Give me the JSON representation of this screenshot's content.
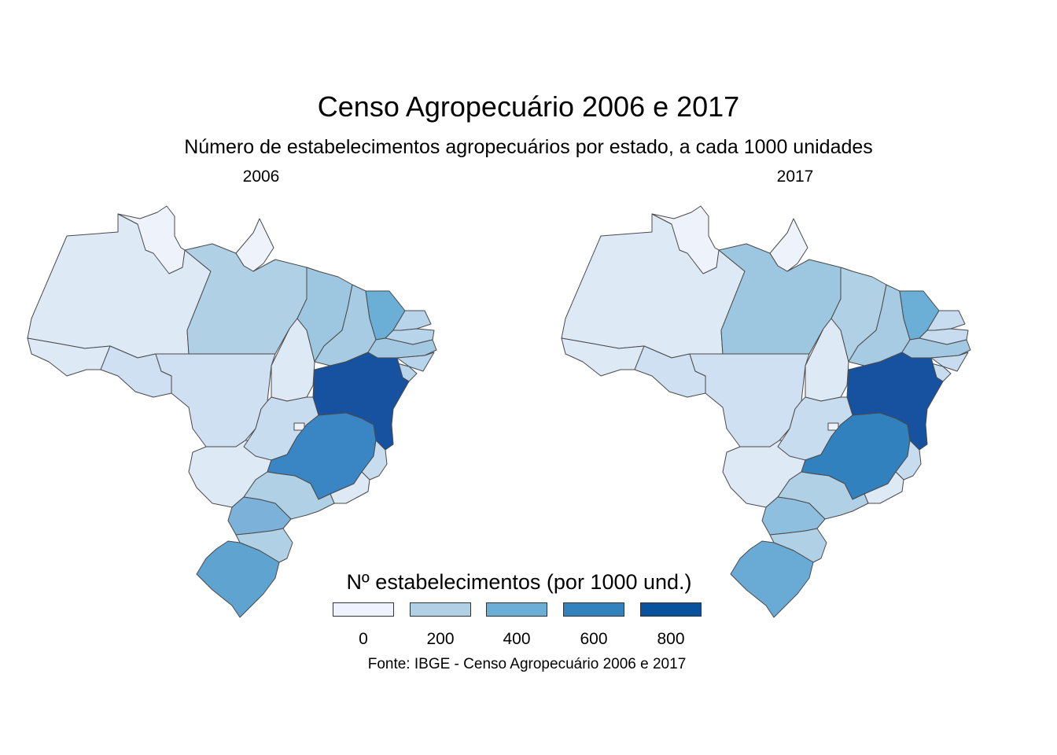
{
  "title": "Censo Agropecuário 2006 e 2017",
  "subtitle": "Número de estabelecimentos agropecuários por estado, a cada 1000 unidades",
  "panels": [
    {
      "label": "2006"
    },
    {
      "label": "2017"
    }
  ],
  "legend": {
    "title": "Nº estabelecimentos (por 1000 und.)",
    "breaks": [
      "0",
      "200",
      "400",
      "600",
      "800"
    ],
    "colors": [
      "#eff3ff",
      "#b0d0e6",
      "#6baed6",
      "#3182bd",
      "#08519c"
    ]
  },
  "source": "Fonte: IBGE - Censo Agropecuário 2006 e 2017",
  "state_colors": {
    "2006": {
      "AM": "#dee9f6",
      "RR": "#eef3fb",
      "AP": "#eef3fb",
      "PA": "#b0d0e6",
      "AC": "#dee9f6",
      "RO": "#cfe0f2",
      "MT": "#cfe0f2",
      "TO": "#dee9f6",
      "MA": "#9dc6e0",
      "PI": "#a8cbe4",
      "CE": "#6baed6",
      "RN": "#b7d4ea",
      "PB": "#b7d4ea",
      "PE": "#a2c8e2",
      "AL": "#b7d4ea",
      "SE": "#b7d4ea",
      "BA": "#1752a0",
      "MS": "#dee9f6",
      "GO": "#c8dcef",
      "DF": "#eef3fb",
      "MG": "#3a86c4",
      "ES": "#c8dcef",
      "RJ": "#dee9f6",
      "SP": "#b0d0e6",
      "PR": "#7cb2d9",
      "SC": "#b0d0e6",
      "RS": "#5fa3d1"
    },
    "2017": {
      "AM": "#dee9f6",
      "RR": "#eef3fb",
      "AP": "#eef3fb",
      "PA": "#9dc6e0",
      "AC": "#dee9f6",
      "RO": "#cfe0f2",
      "MT": "#cfe0f2",
      "TO": "#dee9f6",
      "MA": "#b0d0e6",
      "PI": "#a8cbe4",
      "CE": "#6baed6",
      "RN": "#c8dcef",
      "PB": "#c8dcef",
      "PE": "#a2c8e2",
      "AL": "#c8dcef",
      "SE": "#c8dcef",
      "BA": "#1752a0",
      "MS": "#dee9f6",
      "GO": "#c8dcef",
      "DF": "#eef3fb",
      "MG": "#3181bf",
      "ES": "#c8dcef",
      "RJ": "#dee9f6",
      "SP": "#b0d0e6",
      "PR": "#8ebfdf",
      "SC": "#b0d0e6",
      "RS": "#6aabd6"
    }
  }
}
